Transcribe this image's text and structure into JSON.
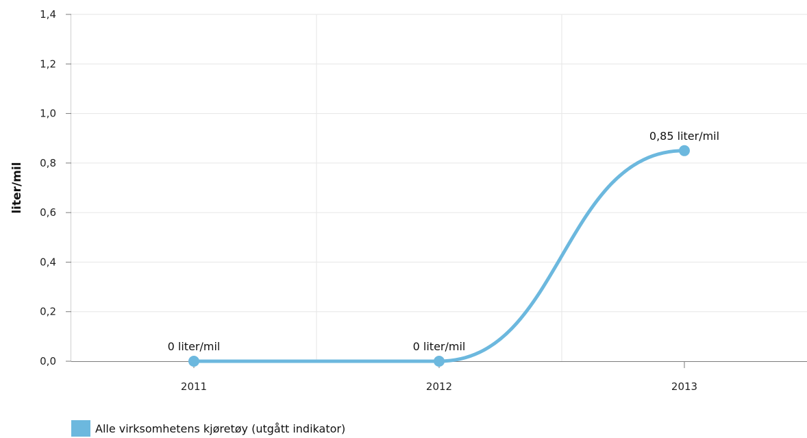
{
  "chart_data": {
    "type": "line",
    "categories": [
      "2011",
      "2012",
      "2013"
    ],
    "series": [
      {
        "name": "Alle virksomhetens kjøretøy (utgått indikator)",
        "values": [
          0,
          0,
          0.85
        ],
        "data_labels": [
          "0 liter/mil",
          "0 liter/mil",
          "0,85 liter/mil"
        ],
        "color": "#6cb8de"
      }
    ],
    "ylabel": "liter/mil",
    "ylim": [
      0,
      1.4
    ],
    "yticks": [
      0,
      0.2,
      0.4,
      0.6,
      0.8,
      1.0,
      1.2,
      1.4
    ],
    "ytick_labels": [
      "0,0",
      "0,2",
      "0,4",
      "0,6",
      "0,8",
      "1,0",
      "1,2",
      "1,4"
    ],
    "grid": true,
    "legend_position": "bottom-left"
  }
}
